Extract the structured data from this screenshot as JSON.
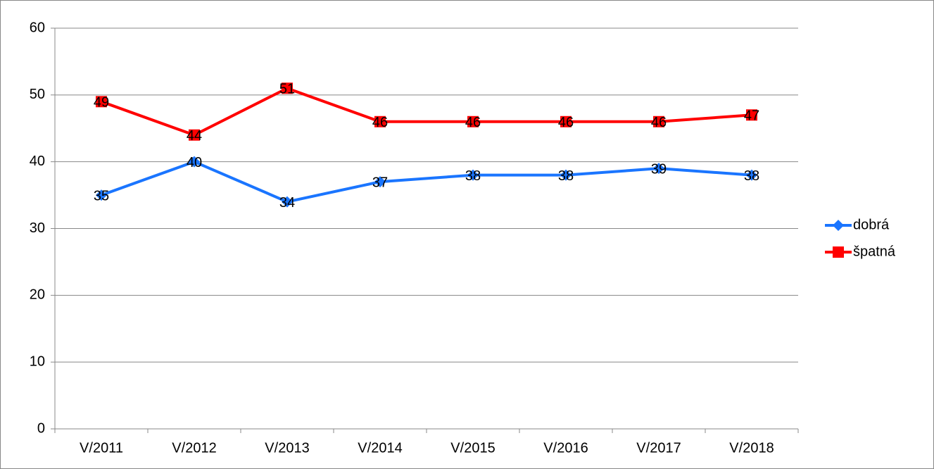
{
  "chart_data": {
    "type": "line",
    "categories": [
      "V/2011",
      "V/2012",
      "V/2013",
      "V/2014",
      "V/2015",
      "V/2016",
      "V/2017",
      "V/2018"
    ],
    "series": [
      {
        "name": "dobrá",
        "color": "#1a75ff",
        "marker": "diamond",
        "values": [
          35,
          40,
          34,
          37,
          38,
          38,
          39,
          38
        ]
      },
      {
        "name": "špatná",
        "color": "#ff0000",
        "marker": "square",
        "values": [
          49,
          44,
          51,
          46,
          46,
          46,
          46,
          47
        ]
      }
    ],
    "ylim": [
      0,
      60
    ],
    "yticks": [
      0,
      10,
      20,
      30,
      40,
      50,
      60
    ],
    "grid": true,
    "legend": "right",
    "data_labels": true
  }
}
